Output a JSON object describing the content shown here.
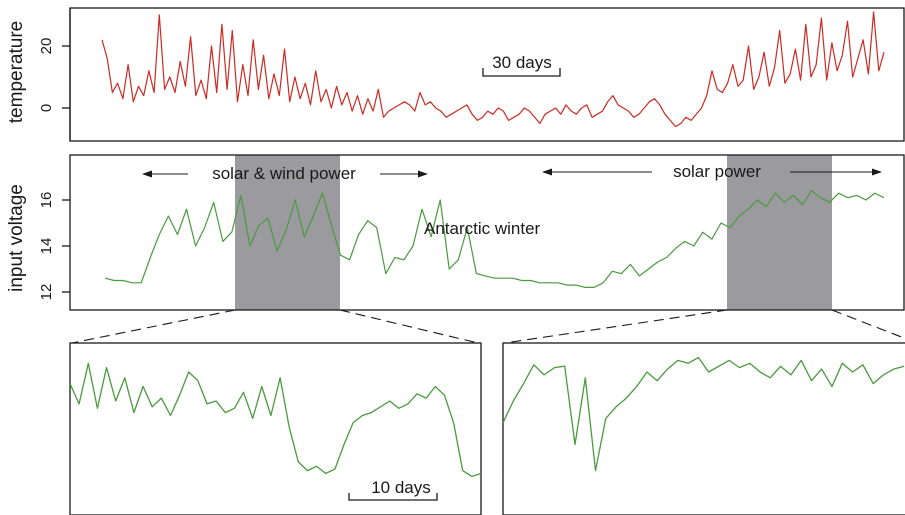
{
  "chart_data": [
    {
      "type": "line",
      "ylabel": "temperature",
      "yticks": [
        0,
        20
      ],
      "ylim": [
        -6,
        31
      ],
      "scale_bar": "30 days",
      "colors": {
        "line": "#cc2a22"
      },
      "series": [
        {
          "values": [
            22,
            16,
            5,
            8,
            3,
            14,
            2,
            7,
            4,
            12,
            5,
            30,
            6,
            10,
            5,
            15,
            7,
            23,
            4,
            9,
            3,
            20,
            5,
            27,
            6,
            25,
            2,
            14,
            4,
            22,
            6,
            17,
            3,
            11,
            4,
            19,
            2,
            10,
            3,
            8,
            1,
            12,
            2,
            6,
            0,
            7,
            1,
            5,
            -1,
            4,
            -2,
            3,
            -1,
            6,
            -3,
            -1,
            0,
            1,
            2,
            1,
            -1,
            5,
            1,
            2,
            0,
            -1,
            -3,
            -2,
            -1,
            0,
            1,
            -2,
            -4,
            -3,
            -1,
            -2,
            0,
            -1,
            -4,
            -3,
            -2,
            0,
            -1,
            -3,
            -5,
            -2,
            -1,
            0,
            -2,
            1,
            -1,
            -2,
            0,
            1,
            -3,
            -2,
            -1,
            2,
            4,
            1,
            0,
            -1,
            -3,
            -2,
            0,
            2,
            3,
            1,
            -2,
            -4,
            -6,
            -5,
            -3,
            -4,
            -2,
            0,
            4,
            12,
            6,
            5,
            8,
            14,
            7,
            9,
            20,
            6,
            10,
            18,
            7,
            13,
            25,
            8,
            11,
            19,
            9,
            27,
            10,
            14,
            29,
            9,
            21,
            12,
            17,
            28,
            10,
            16,
            22,
            11,
            31,
            12,
            18
          ]
        }
      ]
    },
    {
      "type": "line",
      "ylabel": "input voltage",
      "yticks": [
        12,
        14,
        16
      ],
      "ylim": [
        11.6,
        17.3
      ],
      "annotations": {
        "left_arrow": "solar & wind power",
        "right_arrow": "solar power",
        "middle": "Antarctic winter"
      },
      "colors": {
        "line": "#4a9a3e",
        "shade": "#9b9b9f"
      },
      "series": [
        {
          "values": [
            12.6,
            12.5,
            12.5,
            12.4,
            12.4,
            13.5,
            14.5,
            15.3,
            14.5,
            15.6,
            14.0,
            14.8,
            15.9,
            14.2,
            14.6,
            16.2,
            14.0,
            14.9,
            15.2,
            13.8,
            14.7,
            16.0,
            14.4,
            15.3,
            16.3,
            14.9,
            13.6,
            13.4,
            14.5,
            15.1,
            14.8,
            12.8,
            13.5,
            13.4,
            14.0,
            15.6,
            14.4,
            16.0,
            13.0,
            13.4,
            14.8,
            12.8,
            12.7,
            12.6,
            12.6,
            12.6,
            12.5,
            12.5,
            12.4,
            12.4,
            12.4,
            12.3,
            12.3,
            12.2,
            12.2,
            12.4,
            12.9,
            12.8,
            13.2,
            12.7,
            13.0,
            13.3,
            13.5,
            13.9,
            14.2,
            14.0,
            14.6,
            14.3,
            15.0,
            14.8,
            15.3,
            15.6,
            16.0,
            15.7,
            16.3,
            15.9,
            16.2,
            15.8,
            16.4,
            16.1,
            15.9,
            16.3,
            16.1,
            16.2,
            16.0,
            16.3,
            16.1
          ]
        }
      ]
    },
    {
      "type": "line",
      "xlabel": "",
      "scale_bar": "10 days",
      "colors": {
        "line": "#4a9a3e"
      },
      "series": [
        {
          "values": [
            0.72,
            0.58,
            0.86,
            0.55,
            0.83,
            0.6,
            0.76,
            0.52,
            0.7,
            0.56,
            0.62,
            0.5,
            0.64,
            0.8,
            0.74,
            0.58,
            0.6,
            0.52,
            0.55,
            0.66,
            0.48,
            0.7,
            0.5,
            0.76,
            0.42,
            0.18,
            0.12,
            0.15,
            0.1,
            0.13,
            0.3,
            0.45,
            0.5,
            0.52,
            0.56,
            0.6,
            0.55,
            0.58,
            0.65,
            0.62,
            0.7,
            0.64,
            0.45,
            0.12,
            0.08,
            0.1
          ]
        }
      ]
    },
    {
      "type": "line",
      "colors": {
        "line": "#4a9a3e"
      },
      "series": [
        {
          "values": [
            0.45,
            0.6,
            0.72,
            0.85,
            0.78,
            0.83,
            0.84,
            0.3,
            0.76,
            0.12,
            0.48,
            0.56,
            0.62,
            0.7,
            0.8,
            0.74,
            0.82,
            0.88,
            0.86,
            0.9,
            0.8,
            0.84,
            0.88,
            0.83,
            0.86,
            0.8,
            0.76,
            0.84,
            0.78,
            0.88,
            0.74,
            0.82,
            0.7,
            0.86,
            0.8,
            0.85,
            0.72,
            0.78,
            0.82,
            0.84
          ]
        }
      ]
    }
  ]
}
